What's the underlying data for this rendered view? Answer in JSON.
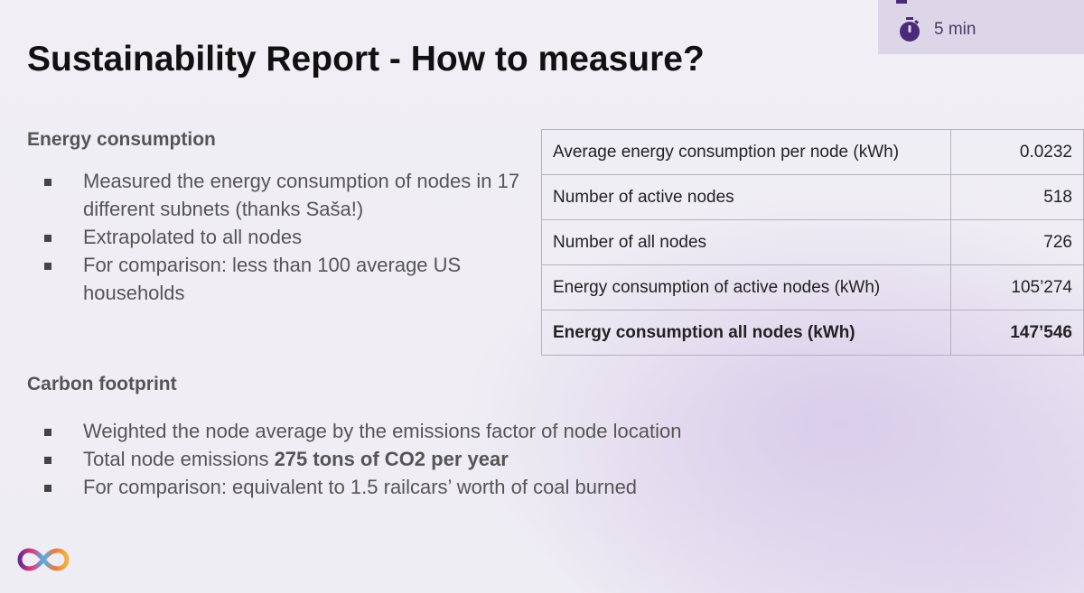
{
  "timer": {
    "label": "5 min",
    "icon": "stopwatch-icon"
  },
  "title": "Sustainability Report - How to measure?",
  "energy": {
    "heading": "Energy consumption",
    "bullets": [
      "Measured the energy consumption of nodes in 17 different subnets (thanks Saša!)",
      "Extrapolated to all nodes",
      "For comparison: less than 100 average US households"
    ]
  },
  "carbon": {
    "heading": "Carbon footprint",
    "bullets": [
      {
        "text": "Weighted the node average by the emissions factor of node location"
      },
      {
        "pre": "Total node emissions ",
        "bold": "275 tons of CO2 per year"
      },
      {
        "text": "For comparison: equivalent to 1.5 railcars’ worth of coal burned"
      }
    ]
  },
  "table": {
    "rows": [
      {
        "label": "Average energy consumption per node (kWh)",
        "value": "0.0232"
      },
      {
        "label": "Number of active nodes",
        "value": "518"
      },
      {
        "label": "Number of all nodes",
        "value": "726"
      },
      {
        "label": "Energy consumption of active nodes (kWh)",
        "value": "105’274"
      },
      {
        "label": "Energy consumption all nodes (kWh)",
        "value": "147’546"
      }
    ]
  },
  "logo": "infinity-logo"
}
